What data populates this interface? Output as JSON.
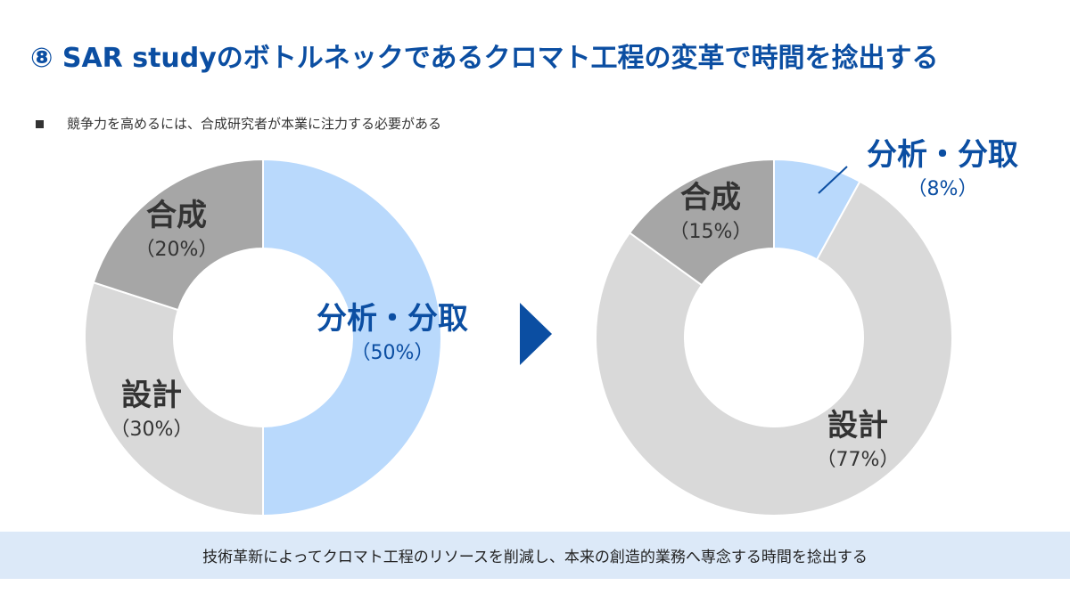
{
  "title": "⑧ SAR studyのボトルネックであるクロマト工程の変革で時間を捻出する",
  "subtitle": "競争力を高めるには、合成研究者が本業に注力する必要がある",
  "footer": "技術革新によってクロマト工程のリソースを削減し、本来の創造的業務へ専念する時間を捻出する",
  "colors": {
    "accent": "#0b4ea2",
    "analysis": "#b9d9fc",
    "design": "#d9d9d9",
    "synthesis": "#a6a6a6",
    "footer_bg": "#dce9f8"
  },
  "arrow_icon": "right-triangle-arrow",
  "chart_data": [
    {
      "type": "pie",
      "variant": "donut",
      "categories": [
        "分析・分取",
        "設計",
        "合成"
      ],
      "values": [
        50,
        30,
        20
      ],
      "labels": [
        {
          "name": "分析・分取",
          "pct": "（50%）"
        },
        {
          "name": "設計",
          "pct": "（30%）"
        },
        {
          "name": "合成",
          "pct": "（20%）"
        }
      ]
    },
    {
      "type": "pie",
      "variant": "donut",
      "categories": [
        "分析・分取",
        "設計",
        "合成"
      ],
      "values": [
        8,
        77,
        15
      ],
      "labels": [
        {
          "name": "分析・分取",
          "pct": "（8%）"
        },
        {
          "name": "設計",
          "pct": "（77%）"
        },
        {
          "name": "合成",
          "pct": "（15%）"
        }
      ]
    }
  ]
}
